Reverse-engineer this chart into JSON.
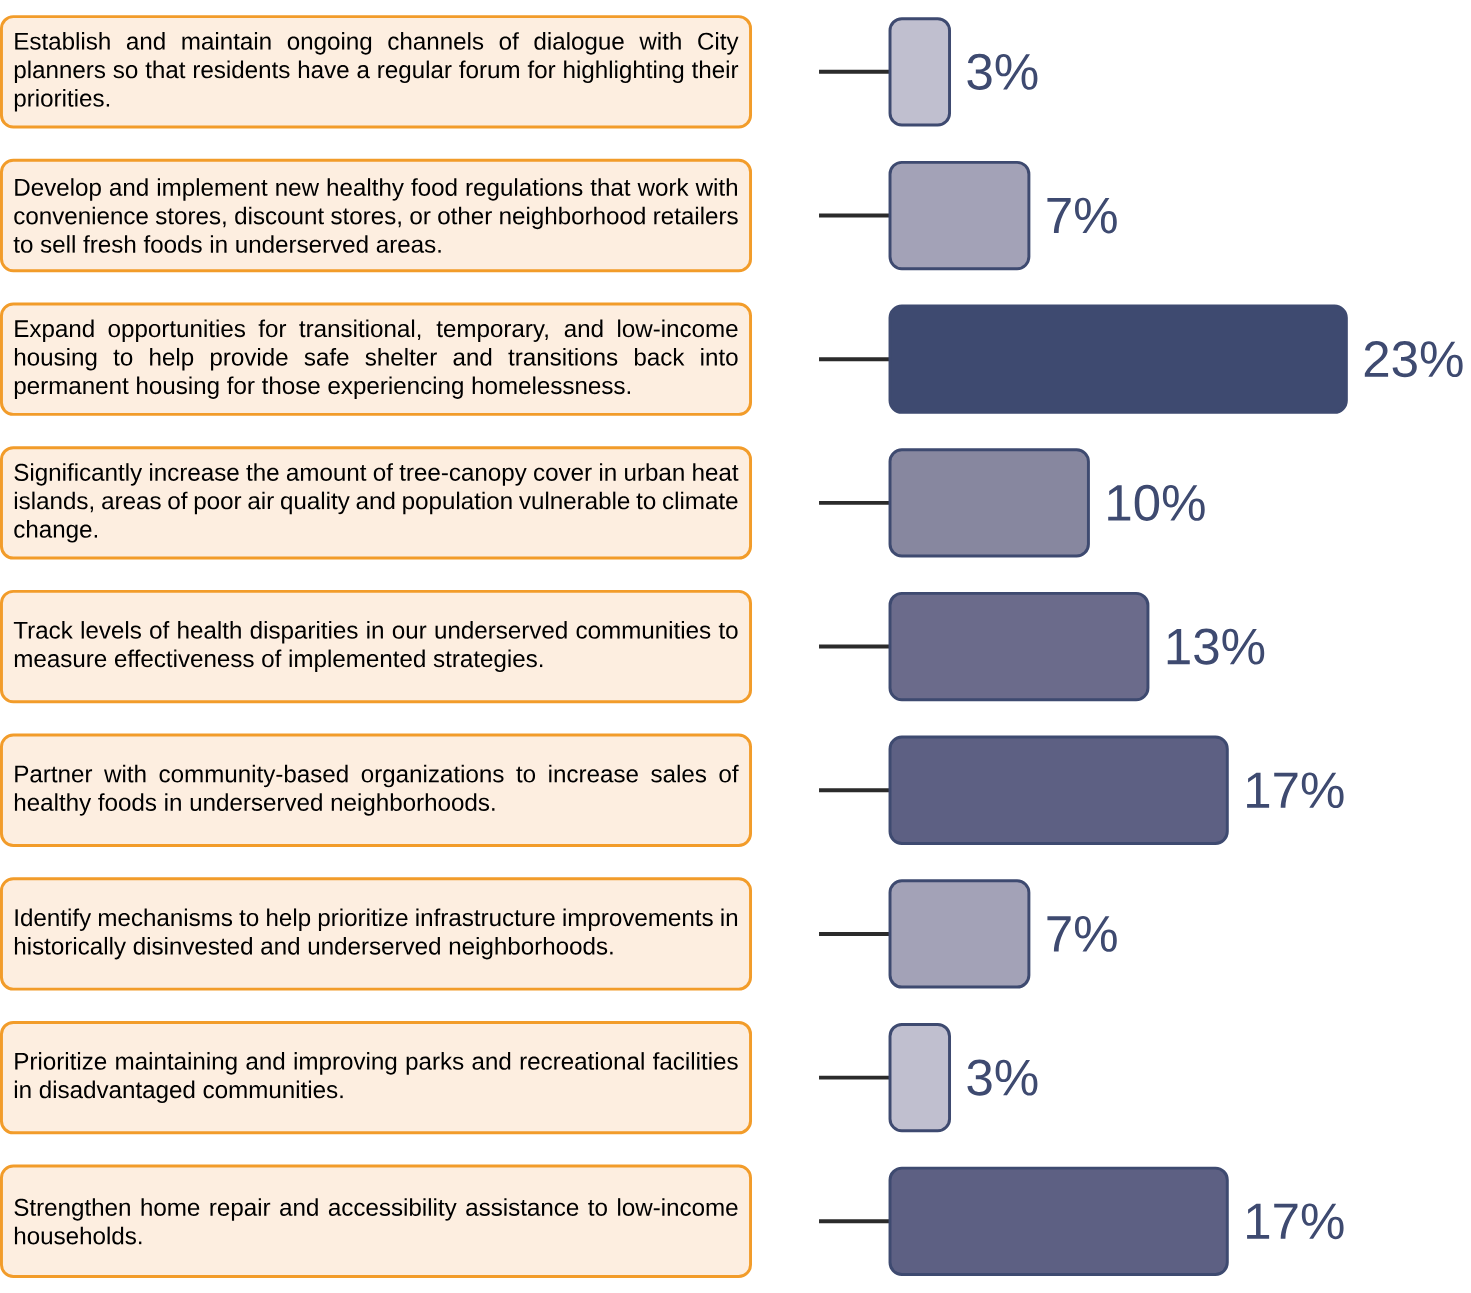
{
  "chart_data": {
    "type": "bar",
    "orientation": "horizontal",
    "categories": [
      "Establish and maintain ongoing channels of dialogue with City planners so that residents have a regular forum for highlighting their priorities.",
      "Develop and implement new healthy food regulations that work with convenience stores, discount stores, or other neighborhood retailers to sell fresh foods in underserved areas.",
      "Expand opportunities for transitional, temporary, and low-income housing to help provide safe shelter and transitions back into permanent housing for those experiencing homelessness.",
      "Significantly increase the amount of tree-canopy cover in urban heat islands, areas of poor air quality and population vulnerable to climate change.",
      "Track levels of health disparities in our underserved communities to measure effectiveness of implemented strategies.",
      "Partner with community-based organizations to increase sales of healthy foods in underserved neighborhoods.",
      "Identify mechanisms to help prioritize infrastructure improvements in historically disinvested and underserved neighborhoods.",
      "Prioritize maintaining and improving parks and recreational facilities in disadvantaged communities.",
      "Strengthen home repair and accessibility assistance to low-income households."
    ],
    "values": [
      3,
      7,
      23,
      10,
      13,
      17,
      7,
      3,
      17
    ],
    "value_labels": [
      "3%",
      "7%",
      "23%",
      "10%",
      "13%",
      "17%",
      "7%",
      "3%",
      "17%"
    ],
    "colors": [
      "#c0bfcf",
      "#a3a2b7",
      "#3e4a70",
      "#87879f",
      "#6b6b8b",
      "#5d6083",
      "#a3a2b7",
      "#c0bfcf",
      "#5d6083"
    ]
  }
}
